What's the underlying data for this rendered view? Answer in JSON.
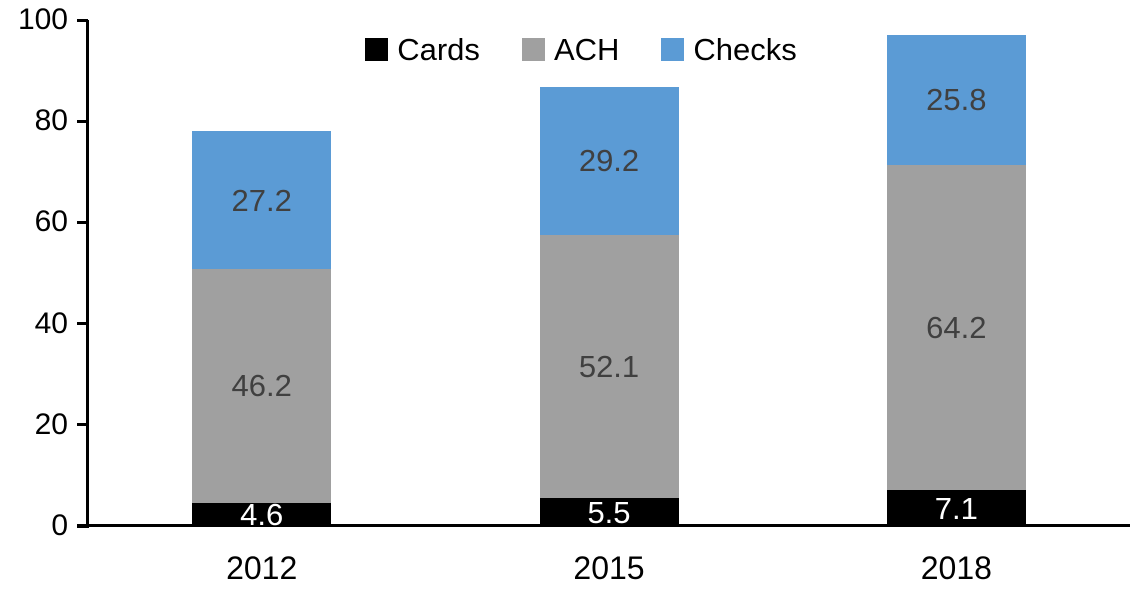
{
  "chart_data": {
    "type": "bar",
    "stacked": true,
    "title": "",
    "xlabel": "",
    "ylabel": "",
    "categories": [
      "2012",
      "2015",
      "2018"
    ],
    "series": [
      {
        "name": "Cards",
        "color": "#000000",
        "label_color": "#FFFFFF",
        "values": [
          4.6,
          5.5,
          7.1
        ]
      },
      {
        "name": "ACH",
        "color": "#A0A0A0",
        "label_color": "#404040",
        "values": [
          46.2,
          52.1,
          64.2
        ]
      },
      {
        "name": "Checks",
        "color": "#5B9BD5",
        "label_color": "#404040",
        "values": [
          27.2,
          29.2,
          25.8
        ]
      }
    ],
    "ylim": [
      0,
      100
    ],
    "yticks": [
      0,
      20,
      40,
      60,
      80,
      100
    ],
    "legend_position": "top",
    "grid": false,
    "axis_color": "#000000"
  }
}
